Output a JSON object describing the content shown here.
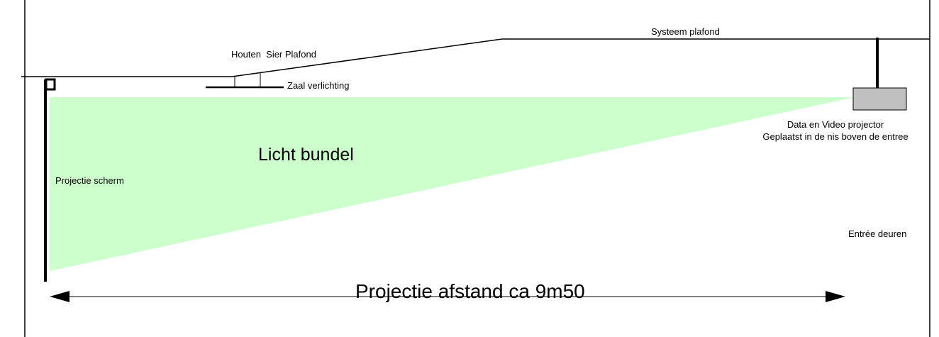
{
  "labels": {
    "systeem_plafond": "Systeem plafond",
    "houten_sier_plafond": "Houten  Sier Plafond",
    "zaal_verlichting": "Zaal verlichting",
    "projector_line1": "Data en Video projector",
    "projector_line2": "Geplaatst in de nis boven de entree",
    "licht_bundel": "Licht bundel",
    "projectie_scherm": "Projectie scherm",
    "entree_deuren": "Entrée deuren",
    "projectie_afstand": "Projectie afstand ca 9m50"
  },
  "colors": {
    "light_beam": "#ccffcc",
    "projector_body": "#c0c0c0",
    "line": "#000000"
  },
  "icons": {
    "projector": "projector-icon",
    "screen": "projection-screen-icon",
    "arrow": "double-arrow-icon"
  }
}
